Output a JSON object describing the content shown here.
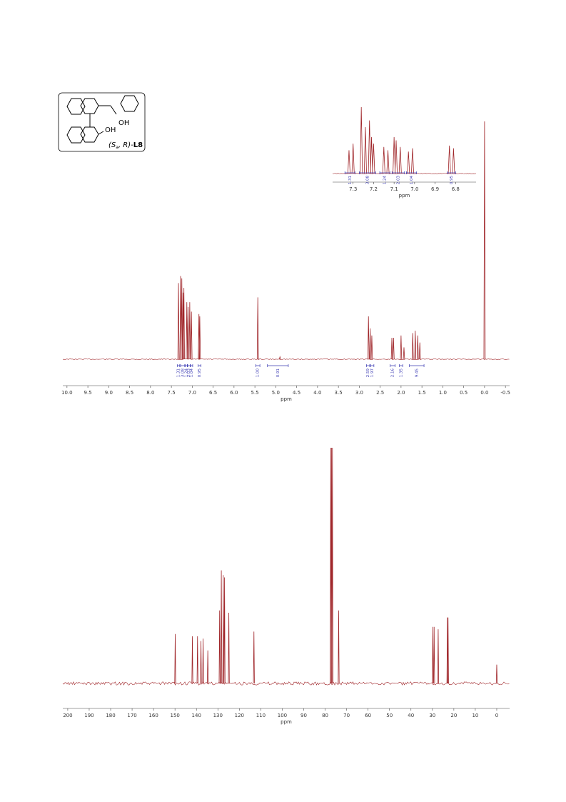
{
  "structure": {
    "oh_top": "OH",
    "oh_bottom": "OH",
    "label_open": "(S",
    "label_sub": "a",
    "label_close": ", R)-",
    "label_id": "L8"
  },
  "chart_data": [
    {
      "type": "spectrum",
      "xlabel": "ppm",
      "color": "#a0262a",
      "xlim": [
        10.1,
        -0.6
      ],
      "xticks": [
        {
          "value": 10,
          "label": "10.0"
        },
        9.5,
        {
          "value": 9,
          "label": "9.0"
        },
        8.5,
        {
          "value": 8,
          "label": "8.0"
        },
        7.5,
        {
          "value": 7,
          "label": "7.0"
        },
        6.5,
        {
          "value": 6,
          "label": "6.0"
        },
        5.5,
        {
          "value": 5,
          "label": "5.0"
        },
        4.5,
        {
          "value": 4,
          "label": "4.0"
        },
        3.5,
        {
          "value": 3,
          "label": "3.0"
        },
        2.5,
        {
          "value": 2,
          "label": "2.0"
        },
        1.5,
        {
          "value": 1,
          "label": "1.0"
        },
        0.5,
        {
          "value": 0,
          "label": "0.0"
        },
        -0.5
      ],
      "x": [
        7.33,
        7.28,
        7.25,
        7.22,
        7.2,
        7.13,
        7.1,
        7.06,
        7.02,
        6.84,
        6.82,
        5.43,
        4.9,
        2.78,
        2.74,
        2.7,
        2.22,
        2.18,
        2.0,
        1.93,
        1.72,
        1.66,
        1.6,
        1.55,
        0.0
      ],
      "values": [
        32,
        35,
        34,
        28,
        30,
        24,
        22,
        24,
        20,
        19,
        18,
        26,
        1,
        18,
        13,
        10,
        9,
        9,
        10,
        5,
        11,
        12,
        10,
        7,
        100
      ],
      "integrals": [
        {
          "from": 7.36,
          "to": 7.3,
          "label": "1.31"
        },
        {
          "from": 7.28,
          "to": 7.18,
          "label": "3.08"
        },
        {
          "from": 7.17,
          "to": 7.12,
          "label": "1.24"
        },
        {
          "from": 7.11,
          "to": 7.05,
          "label": "2.03"
        },
        {
          "from": 7.04,
          "to": 6.99,
          "label": "1.04"
        },
        {
          "from": 6.86,
          "to": 6.79,
          "label": "0.95"
        },
        {
          "from": 5.48,
          "to": 5.38,
          "label": "1.00"
        },
        {
          "from": 5.2,
          "to": 4.7,
          "label": "0.91"
        },
        {
          "from": 2.83,
          "to": 2.75,
          "label": "2.59"
        },
        {
          "from": 2.73,
          "to": 2.65,
          "label": "1.97"
        },
        {
          "from": 2.26,
          "to": 2.14,
          "label": "2.16"
        },
        {
          "from": 2.04,
          "to": 1.96,
          "label": "1.35"
        },
        {
          "from": 1.8,
          "to": 1.45,
          "label": "9.45"
        }
      ]
    },
    {
      "type": "spectrum",
      "xlabel": "ppm",
      "color": "#a0262a",
      "xlim": [
        7.4,
        6.7
      ],
      "xticks": [
        7.3,
        7.2,
        7.1,
        {
          "value": 7,
          "label": "7.0"
        },
        6.9,
        6.8
      ],
      "x": [
        7.32,
        7.3,
        7.26,
        7.24,
        7.22,
        7.21,
        7.2,
        7.15,
        7.13,
        7.1,
        7.09,
        7.07,
        7.03,
        7.01,
        6.83,
        6.81
      ],
      "values": [
        35,
        45,
        100,
        70,
        80,
        55,
        45,
        40,
        35,
        55,
        50,
        40,
        33,
        38,
        42,
        38
      ],
      "integrals": [
        {
          "from": 7.34,
          "to": 7.29,
          "label": "1.31"
        },
        {
          "from": 7.27,
          "to": 7.19,
          "label": "3.08"
        },
        {
          "from": 7.17,
          "to": 7.12,
          "label": "1.24"
        },
        {
          "from": 7.11,
          "to": 7.05,
          "label": "2.03"
        },
        {
          "from": 7.04,
          "to": 6.99,
          "label": "1.04"
        },
        {
          "from": 6.84,
          "to": 6.8,
          "label": "0.95"
        }
      ]
    },
    {
      "type": "spectrum",
      "xlabel": "ppm",
      "color": "#a0262a",
      "xlim": [
        202.3,
        -6
      ],
      "xticks": [
        200,
        190,
        180,
        170,
        160,
        150,
        140,
        130,
        120,
        110,
        100,
        90,
        80,
        70,
        60,
        50,
        40,
        30,
        20,
        10,
        0
      ],
      "x": [
        149.9,
        141.9,
        139.5,
        137.9,
        136.9,
        134.7,
        129.2,
        128.4,
        127.5,
        126.9,
        124.9,
        113.2,
        77.4,
        77.0,
        76.6,
        73.7,
        29.8,
        29.2,
        27.3,
        23.0,
        22.7,
        0.0
      ],
      "values": [
        21,
        20,
        20,
        18,
        19,
        14,
        31,
        48,
        46,
        45,
        30,
        22,
        100,
        100,
        100,
        31,
        24,
        24,
        23,
        28,
        28,
        8
      ]
    }
  ]
}
